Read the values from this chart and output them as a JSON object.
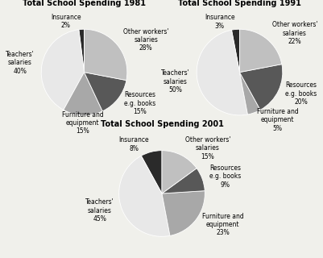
{
  "charts": [
    {
      "title": "Total School Spending 1981",
      "labels": [
        "Insurance",
        "Teachers'\nsalaries",
        "Furniture and\nequipment",
        "Resources\ne.g. books",
        "Other workers'\nsalaries"
      ],
      "pcts": [
        "2%",
        "40%",
        "15%",
        "15%",
        "28%"
      ],
      "values": [
        2,
        40,
        15,
        15,
        28
      ],
      "colors": [
        "#2a2a2a",
        "#e8e8e8",
        "#a8a8a8",
        "#585858",
        "#c0c0c0"
      ]
    },
    {
      "title": "Total School Spending 1991",
      "labels": [
        "Insurance",
        "Teachers'\nsalaries",
        "Furniture and\nequipment",
        "Resources\ne.g. books",
        "Other workers'\nsalaries"
      ],
      "pcts": [
        "3%",
        "50%",
        "5%",
        "20%",
        "22%"
      ],
      "values": [
        3,
        50,
        5,
        20,
        22
      ],
      "colors": [
        "#2a2a2a",
        "#e8e8e8",
        "#a8a8a8",
        "#585858",
        "#c0c0c0"
      ]
    },
    {
      "title": "Total School Spending 2001",
      "labels": [
        "Insurance",
        "Teachers'\nsalaries",
        "Furniture and\nequipment",
        "Resources\ne.g. books",
        "Other workers'\nsalaries"
      ],
      "pcts": [
        "8%",
        "45%",
        "23%",
        "9%",
        "15%"
      ],
      "values": [
        8,
        45,
        23,
        9,
        15
      ],
      "colors": [
        "#2a2a2a",
        "#e8e8e8",
        "#a8a8a8",
        "#585858",
        "#c0c0c0"
      ]
    }
  ],
  "background_color": "#f0f0eb",
  "title_fontsize": 7.0,
  "label_fontsize": 5.5
}
